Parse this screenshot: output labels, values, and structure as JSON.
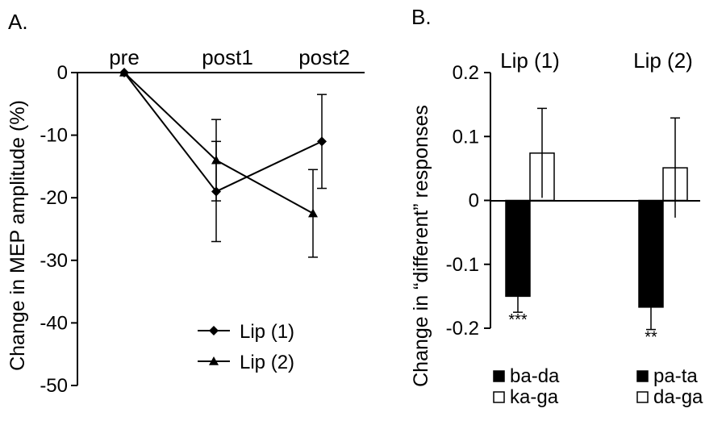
{
  "chart_data": [
    {
      "panel_label": "A.",
      "type": "line",
      "ylabel": "Change in MEP amplitude (%)",
      "categories": [
        "pre",
        "post1",
        "post2"
      ],
      "ylim": [
        -50,
        0
      ],
      "yticks": [
        0,
        -10,
        -20,
        -30,
        -40,
        -50
      ],
      "series": [
        {
          "name": "Lip (1)",
          "marker": "diamond",
          "values": [
            0,
            -19,
            -11
          ],
          "errors": [
            0,
            8,
            7.5
          ]
        },
        {
          "name": "Lip (2)",
          "marker": "triangle",
          "values": [
            0,
            -14,
            -22.5
          ],
          "errors": [
            0,
            6.5,
            7
          ]
        }
      ]
    },
    {
      "panel_label": "B.",
      "type": "bar",
      "ylabel": "Change in “different” responses",
      "ylim": [
        -0.2,
        0.2
      ],
      "yticks": [
        "0.2",
        "0.1",
        "0",
        "-0.1",
        "-0.2"
      ],
      "groups": [
        {
          "title": "Lip (1)",
          "bars": [
            {
              "name": "ba-da",
              "value": -0.15,
              "error": 0.025,
              "fill": "#000000"
            },
            {
              "name": "ka-ga",
              "value": 0.074,
              "error": 0.07,
              "fill": "#ffffff"
            }
          ],
          "significance": "***"
        },
        {
          "title": "Lip (2)",
          "bars": [
            {
              "name": "pa-ta",
              "value": -0.167,
              "error": 0.035,
              "fill": "#000000"
            },
            {
              "name": "da-ga",
              "value": 0.051,
              "error": 0.078,
              "fill": "#ffffff"
            }
          ],
          "significance": "**"
        }
      ]
    }
  ]
}
